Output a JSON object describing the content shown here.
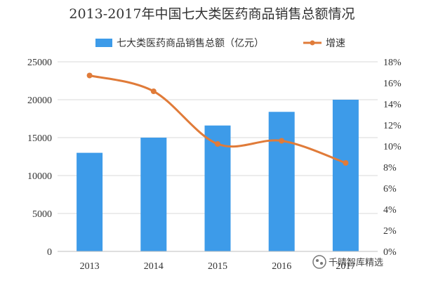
{
  "chart_data": {
    "type": "bar",
    "title": "2013-2017年中国七大类医药商品销售总额情况",
    "categories": [
      "2013",
      "2014",
      "2015",
      "2016",
      "2017"
    ],
    "series": [
      {
        "name": "七大类医药商品销售总额（亿元）",
        "type": "bar",
        "axis": "left",
        "values": [
          13000,
          15000,
          16600,
          18400,
          20000
        ],
        "color": "#3d9be9"
      },
      {
        "name": "增速",
        "type": "line",
        "axis": "right",
        "values": [
          16.7,
          15.2,
          10.2,
          10.5,
          8.4
        ],
        "color": "#e07b39"
      }
    ],
    "y_left": {
      "min": 0,
      "max": 25000,
      "ticks": [
        "0",
        "5000",
        "10000",
        "15000",
        "20000",
        "25000"
      ]
    },
    "y_right": {
      "min": 0,
      "max": 18,
      "ticks": [
        "0%",
        "2%",
        "4%",
        "6%",
        "8%",
        "10%",
        "12%",
        "14%",
        "16%",
        "18%"
      ]
    },
    "grid": true,
    "legend_position": "top"
  },
  "watermark": {
    "text": "千晴智库精选"
  }
}
